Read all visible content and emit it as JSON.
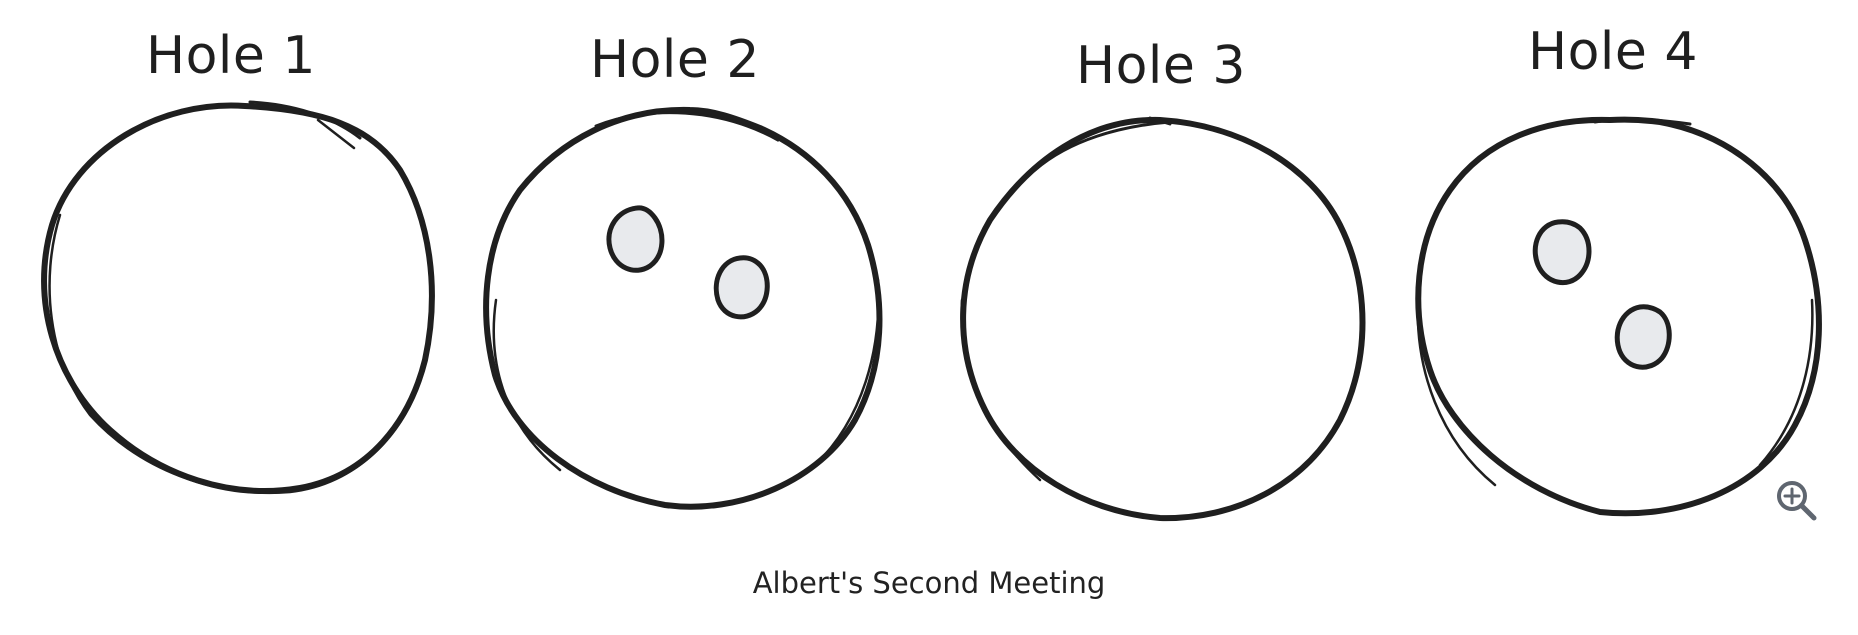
{
  "holes": [
    {
      "title": "Hole 1",
      "balls": 0
    },
    {
      "title": "Hole 2",
      "balls": 2
    },
    {
      "title": "Hole 3",
      "balls": 0
    },
    {
      "title": "Hole 4",
      "balls": 2
    }
  ],
  "caption": "Albert's Second Meeting",
  "icons": {
    "zoom": "zoom-in-icon"
  },
  "colors": {
    "stroke": "#1f1f1f",
    "ball_fill": "#e8eaed",
    "icon": "#5f6670",
    "background": "#ffffff"
  }
}
